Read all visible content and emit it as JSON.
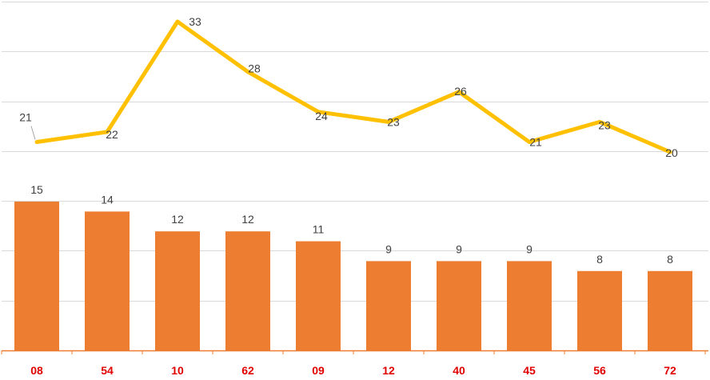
{
  "chart_data": {
    "type": "bar",
    "categories": [
      "08",
      "54",
      "10",
      "62",
      "09",
      "12",
      "40",
      "45",
      "56",
      "72"
    ],
    "series": [
      {
        "type": "bar",
        "values": [
          15,
          14,
          12,
          12,
          11,
          9,
          9,
          9,
          8,
          8
        ],
        "color": "#ED7D31"
      },
      {
        "type": "line",
        "values": [
          21,
          22,
          33,
          28,
          24,
          23,
          26,
          21,
          23,
          20
        ],
        "color": "#FFC000"
      }
    ],
    "grid": true,
    "legend": "none",
    "colors": {
      "gridline": "#D9D9D9",
      "axis": "#ED7D31",
      "tick_label": "#E00000",
      "data_label": "#404040"
    }
  }
}
